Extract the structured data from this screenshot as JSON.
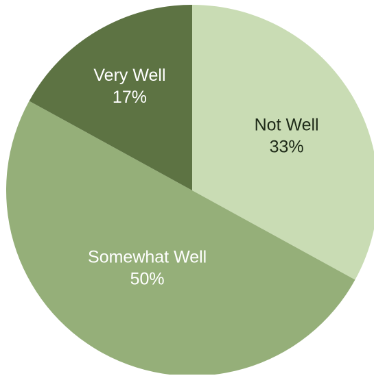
{
  "chart_data": {
    "type": "pie",
    "title": "",
    "slices": [
      {
        "label": "Not Well",
        "value": 33,
        "value_label": "33%",
        "color": "#c9dcb4",
        "text_color": "#1e2a18"
      },
      {
        "label": "Somewhat Well",
        "value": 50,
        "value_label": "50%",
        "color": "#95af79",
        "text_color": "#ffffff"
      },
      {
        "label": "Very Well",
        "value": 17,
        "value_label": "17%",
        "color": "#5d7343",
        "text_color": "#ffffff"
      }
    ],
    "start": "12 o'clock",
    "direction": "clockwise",
    "legend": "none"
  }
}
